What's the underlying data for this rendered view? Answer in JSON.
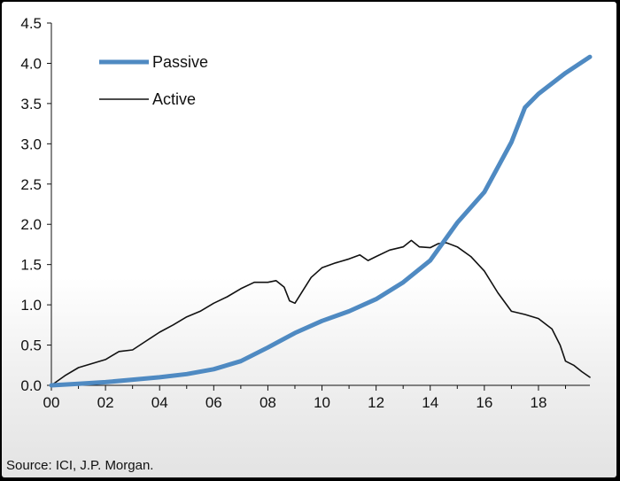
{
  "chart_data": {
    "type": "line",
    "ylim": [
      0,
      4.5
    ],
    "xlim": [
      2000,
      2019.9
    ],
    "yticks": [
      "0.0",
      "0.5",
      "1.0",
      "1.5",
      "2.0",
      "2.5",
      "3.0",
      "3.5",
      "4.0",
      "4.5"
    ],
    "xticks": [
      "00",
      "02",
      "04",
      "06",
      "08",
      "10",
      "12",
      "14",
      "16",
      "18"
    ],
    "legend_position": "top-left",
    "series": [
      {
        "name": "Passive",
        "color": "#4f8ac2",
        "points": [
          [
            2000,
            0.0
          ],
          [
            2001,
            0.02
          ],
          [
            2002,
            0.04
          ],
          [
            2003,
            0.07
          ],
          [
            2004,
            0.1
          ],
          [
            2005,
            0.14
          ],
          [
            2006,
            0.2
          ],
          [
            2007,
            0.3
          ],
          [
            2008,
            0.47
          ],
          [
            2009,
            0.65
          ],
          [
            2010,
            0.8
          ],
          [
            2011,
            0.92
          ],
          [
            2012,
            1.07
          ],
          [
            2013,
            1.28
          ],
          [
            2014,
            1.55
          ],
          [
            2015,
            2.02
          ],
          [
            2016,
            2.4
          ],
          [
            2017,
            3.02
          ],
          [
            2017.5,
            3.45
          ],
          [
            2018,
            3.62
          ],
          [
            2019,
            3.88
          ],
          [
            2019.9,
            4.08
          ]
        ]
      },
      {
        "name": "Active",
        "color": "#111111",
        "points": [
          [
            2000,
            0.0
          ],
          [
            2000.5,
            0.12
          ],
          [
            2001,
            0.22
          ],
          [
            2002,
            0.32
          ],
          [
            2002.5,
            0.42
          ],
          [
            2003,
            0.44
          ],
          [
            2003.5,
            0.55
          ],
          [
            2004,
            0.66
          ],
          [
            2004.5,
            0.75
          ],
          [
            2005,
            0.85
          ],
          [
            2005.5,
            0.92
          ],
          [
            2006,
            1.02
          ],
          [
            2006.5,
            1.1
          ],
          [
            2007,
            1.2
          ],
          [
            2007.5,
            1.28
          ],
          [
            2008,
            1.28
          ],
          [
            2008.3,
            1.3
          ],
          [
            2008.6,
            1.22
          ],
          [
            2008.8,
            1.05
          ],
          [
            2009,
            1.02
          ],
          [
            2009.3,
            1.18
          ],
          [
            2009.6,
            1.34
          ],
          [
            2010,
            1.46
          ],
          [
            2010.5,
            1.52
          ],
          [
            2011,
            1.57
          ],
          [
            2011.4,
            1.62
          ],
          [
            2011.7,
            1.55
          ],
          [
            2012,
            1.6
          ],
          [
            2012.5,
            1.68
          ],
          [
            2013,
            1.72
          ],
          [
            2013.3,
            1.8
          ],
          [
            2013.6,
            1.72
          ],
          [
            2014,
            1.71
          ],
          [
            2014.3,
            1.76
          ],
          [
            2014.6,
            1.77
          ],
          [
            2015,
            1.72
          ],
          [
            2015.5,
            1.6
          ],
          [
            2016,
            1.42
          ],
          [
            2016.5,
            1.15
          ],
          [
            2017,
            0.92
          ],
          [
            2017.5,
            0.88
          ],
          [
            2018,
            0.83
          ],
          [
            2018.5,
            0.7
          ],
          [
            2018.8,
            0.5
          ],
          [
            2019,
            0.3
          ],
          [
            2019.3,
            0.25
          ],
          [
            2019.6,
            0.17
          ],
          [
            2019.9,
            0.1
          ]
        ]
      }
    ]
  },
  "source": "Source: ICI, J.P. Morgan."
}
